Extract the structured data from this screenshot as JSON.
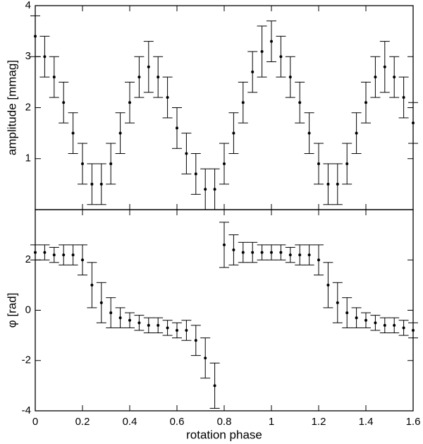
{
  "chart_data": [
    {
      "type": "scatter",
      "ylabel": "amplitude [mmag]",
      "color": "#000000",
      "x": [
        0,
        0.04,
        0.08,
        0.12,
        0.16,
        0.2,
        0.24,
        0.28,
        0.32,
        0.36,
        0.4,
        0.44,
        0.48,
        0.52,
        0.56,
        0.6,
        0.64,
        0.68,
        0.72,
        0.76,
        0.8,
        0.84,
        0.88,
        0.92,
        0.96,
        1.0,
        1.04,
        1.08,
        1.12,
        1.16,
        1.2,
        1.24,
        1.28,
        1.32,
        1.36,
        1.4,
        1.44,
        1.48,
        1.52,
        1.56,
        1.6
      ],
      "values": [
        3.4,
        3.0,
        2.6,
        2.1,
        1.5,
        0.9,
        0.5,
        0.5,
        0.9,
        1.5,
        2.1,
        2.6,
        2.8,
        2.6,
        2.2,
        1.6,
        1.1,
        0.7,
        0.4,
        0.4,
        0.9,
        1.5,
        2.1,
        2.7,
        3.1,
        3.3,
        3.0,
        2.6,
        2.1,
        1.5,
        0.9,
        0.5,
        0.5,
        0.9,
        1.5,
        2.1,
        2.6,
        2.8,
        2.6,
        2.2,
        1.7
      ],
      "errors": [
        0.4,
        0.4,
        0.4,
        0.4,
        0.4,
        0.4,
        0.4,
        0.4,
        0.4,
        0.4,
        0.4,
        0.4,
        0.5,
        0.4,
        0.4,
        0.4,
        0.4,
        0.4,
        0.4,
        0.4,
        0.4,
        0.4,
        0.4,
        0.4,
        0.5,
        0.4,
        0.4,
        0.4,
        0.4,
        0.4,
        0.4,
        0.4,
        0.4,
        0.4,
        0.4,
        0.4,
        0.4,
        0.5,
        0.4,
        0.4,
        0.4
      ],
      "xlim": [
        0,
        1.6
      ],
      "ylim": [
        0,
        4
      ],
      "yticks": [
        1,
        2,
        3,
        4
      ]
    },
    {
      "type": "scatter",
      "ylabel": "φ [rad]",
      "xlabel": "rotation phase",
      "color": "#000000",
      "x": [
        0,
        0.04,
        0.08,
        0.12,
        0.16,
        0.2,
        0.24,
        0.28,
        0.32,
        0.36,
        0.4,
        0.44,
        0.48,
        0.52,
        0.56,
        0.6,
        0.64,
        0.68,
        0.72,
        0.76,
        0.8,
        0.84,
        0.88,
        0.92,
        0.96,
        1.0,
        1.04,
        1.08,
        1.12,
        1.16,
        1.2,
        1.24,
        1.28,
        1.32,
        1.36,
        1.4,
        1.44,
        1.48,
        1.52,
        1.56,
        1.6
      ],
      "values": [
        2.3,
        2.3,
        2.2,
        2.2,
        2.2,
        2.0,
        1.0,
        0.3,
        -0.1,
        -0.3,
        -0.4,
        -0.5,
        -0.6,
        -0.6,
        -0.7,
        -0.8,
        -0.8,
        -1.2,
        -1.9,
        -3.0,
        2.6,
        2.4,
        2.3,
        2.3,
        2.3,
        2.3,
        2.3,
        2.2,
        2.2,
        2.2,
        2.0,
        1.0,
        0.3,
        -0.1,
        -0.3,
        -0.4,
        -0.5,
        -0.6,
        -0.6,
        -0.7,
        -0.8
      ],
      "errors": [
        0.3,
        0.3,
        0.3,
        0.4,
        0.4,
        0.6,
        0.9,
        0.8,
        0.6,
        0.4,
        0.3,
        0.3,
        0.3,
        0.3,
        0.3,
        0.3,
        0.4,
        0.6,
        0.8,
        0.9,
        0.9,
        0.6,
        0.4,
        0.4,
        0.3,
        0.3,
        0.3,
        0.3,
        0.4,
        0.4,
        0.6,
        0.9,
        0.8,
        0.6,
        0.4,
        0.3,
        0.3,
        0.3,
        0.3,
        0.3,
        0.3
      ],
      "xlim": [
        0,
        1.6
      ],
      "ylim": [
        -4,
        4
      ],
      "xticks": [
        0,
        0.2,
        0.4,
        0.6,
        0.8,
        1,
        1.2,
        1.4,
        1.6
      ],
      "yticks": [
        -4,
        -2,
        0,
        2
      ]
    }
  ]
}
